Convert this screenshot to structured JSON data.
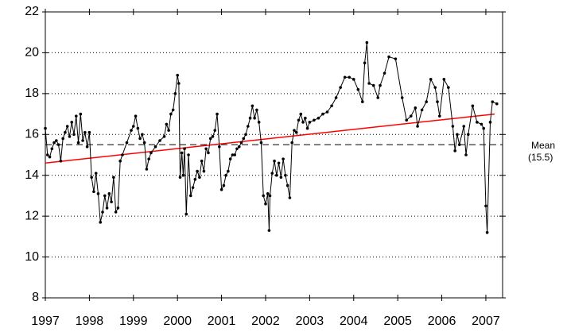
{
  "chart_data": {
    "type": "line",
    "series": [
      {
        "color": "#000000",
        "x": [
          1997.0,
          1997.05,
          1997.1,
          1997.15,
          1997.2,
          1997.25,
          1997.3,
          1997.35,
          1997.4,
          1997.45,
          1997.5,
          1997.55,
          1997.6,
          1997.65,
          1997.7,
          1997.75,
          1997.8,
          1997.85,
          1997.9,
          1997.95,
          1998.0,
          1998.05,
          1998.1,
          1998.15,
          1998.2,
          1998.25,
          1998.3,
          1998.35,
          1998.4,
          1998.45,
          1998.5,
          1998.55,
          1998.6,
          1998.65,
          1998.7,
          1998.75,
          1998.85,
          1998.95,
          1999.0,
          1999.05,
          1999.1,
          1999.15,
          1999.2,
          1999.25,
          1999.3,
          1999.35,
          1999.4,
          1999.5,
          1999.6,
          1999.7,
          1999.75,
          1999.8,
          1999.85,
          1999.9,
          1999.95,
          2000.0,
          2000.03,
          2000.06,
          2000.1,
          2000.13,
          2000.16,
          2000.2,
          2000.25,
          2000.3,
          2000.35,
          2000.4,
          2000.45,
          2000.5,
          2000.55,
          2000.6,
          2000.65,
          2000.7,
          2000.75,
          2000.8,
          2000.85,
          2000.9,
          2000.95,
          2001.0,
          2001.05,
          2001.1,
          2001.15,
          2001.2,
          2001.25,
          2001.3,
          2001.35,
          2001.4,
          2001.45,
          2001.5,
          2001.55,
          2001.6,
          2001.65,
          2001.7,
          2001.75,
          2001.8,
          2001.85,
          2001.9,
          2001.95,
          2002.0,
          2002.05,
          2002.08,
          2002.1,
          2002.15,
          2002.2,
          2002.25,
          2002.3,
          2002.35,
          2002.4,
          2002.45,
          2002.5,
          2002.55,
          2002.6,
          2002.65,
          2002.7,
          2002.75,
          2002.8,
          2002.85,
          2002.9,
          2002.95,
          2003.0,
          2003.1,
          2003.2,
          2003.3,
          2003.4,
          2003.5,
          2003.6,
          2003.7,
          2003.8,
          2003.9,
          2004.0,
          2004.1,
          2004.2,
          2004.25,
          2004.3,
          2004.35,
          2004.45,
          2004.55,
          2004.6,
          2004.7,
          2004.8,
          2004.95,
          2005.1,
          2005.2,
          2005.3,
          2005.4,
          2005.45,
          2005.55,
          2005.65,
          2005.75,
          2005.85,
          2005.9,
          2005.95,
          2006.05,
          2006.15,
          2006.25,
          2006.3,
          2006.35,
          2006.4,
          2006.5,
          2006.55,
          2006.6,
          2006.7,
          2006.8,
          2006.9,
          2006.95,
          2007.0,
          2007.03,
          2007.1,
          2007.15,
          2007.25
        ],
        "values": [
          16.3,
          15.0,
          14.9,
          15.3,
          15.6,
          15.7,
          15.5,
          14.7,
          15.8,
          16.1,
          16.4,
          15.9,
          16.6,
          16.0,
          16.9,
          15.6,
          17.0,
          15.7,
          16.1,
          15.4,
          16.1,
          13.9,
          13.2,
          14.1,
          13.1,
          11.7,
          12.2,
          13.0,
          12.4,
          13.1,
          12.7,
          13.9,
          12.2,
          12.4,
          14.7,
          15.0,
          15.6,
          16.2,
          16.4,
          16.9,
          16.3,
          15.8,
          16.0,
          15.6,
          14.3,
          14.8,
          15.1,
          15.4,
          15.7,
          15.9,
          16.5,
          16.2,
          17.0,
          17.2,
          18.0,
          18.9,
          18.5,
          13.9,
          15.1,
          14.0,
          15.3,
          12.1,
          15.0,
          13.0,
          13.4,
          13.8,
          14.2,
          13.9,
          14.7,
          14.2,
          15.3,
          15.1,
          15.8,
          15.9,
          16.2,
          17.0,
          15.4,
          13.3,
          13.5,
          14.0,
          14.2,
          14.8,
          15.0,
          15.0,
          15.3,
          15.4,
          15.6,
          15.8,
          16.0,
          16.4,
          16.8,
          17.4,
          16.8,
          17.2,
          16.6,
          15.6,
          13.0,
          12.6,
          13.1,
          11.3,
          13.0,
          14.1,
          14.7,
          14.0,
          14.6,
          13.9,
          14.8,
          14.0,
          13.5,
          12.9,
          15.6,
          16.2,
          16.1,
          16.7,
          17.0,
          16.6,
          16.8,
          16.3,
          16.6,
          16.7,
          16.8,
          17.0,
          17.1,
          17.4,
          17.8,
          18.3,
          18.8,
          18.8,
          18.7,
          18.2,
          17.6,
          19.5,
          20.5,
          18.5,
          18.4,
          17.8,
          18.4,
          19.0,
          19.8,
          19.7,
          17.8,
          16.7,
          16.9,
          17.3,
          16.4,
          17.2,
          17.6,
          18.7,
          18.3,
          17.6,
          16.9,
          18.7,
          18.3,
          16.4,
          15.2,
          16.0,
          15.5,
          16.4,
          15.0,
          16.0,
          17.4,
          16.6,
          16.5,
          16.3,
          12.5,
          11.2,
          16.6,
          17.6,
          17.5
        ]
      }
    ],
    "trend": {
      "x": [
        1997.0,
        2007.2
      ],
      "values": [
        14.6,
        17.0
      ],
      "color": "#ff0000"
    },
    "mean": 15.5,
    "mean_label": [
      "Mean",
      "(15.5)"
    ],
    "xlim": [
      1997,
      2007.38
    ],
    "xticks": [
      1997,
      1998,
      1999,
      2000,
      2001,
      2002,
      2003,
      2004,
      2005,
      2006,
      2007
    ],
    "ylim": [
      8,
      22
    ],
    "yticks": [
      8,
      10,
      12,
      14,
      16,
      18,
      20,
      22
    ],
    "grid": true
  }
}
